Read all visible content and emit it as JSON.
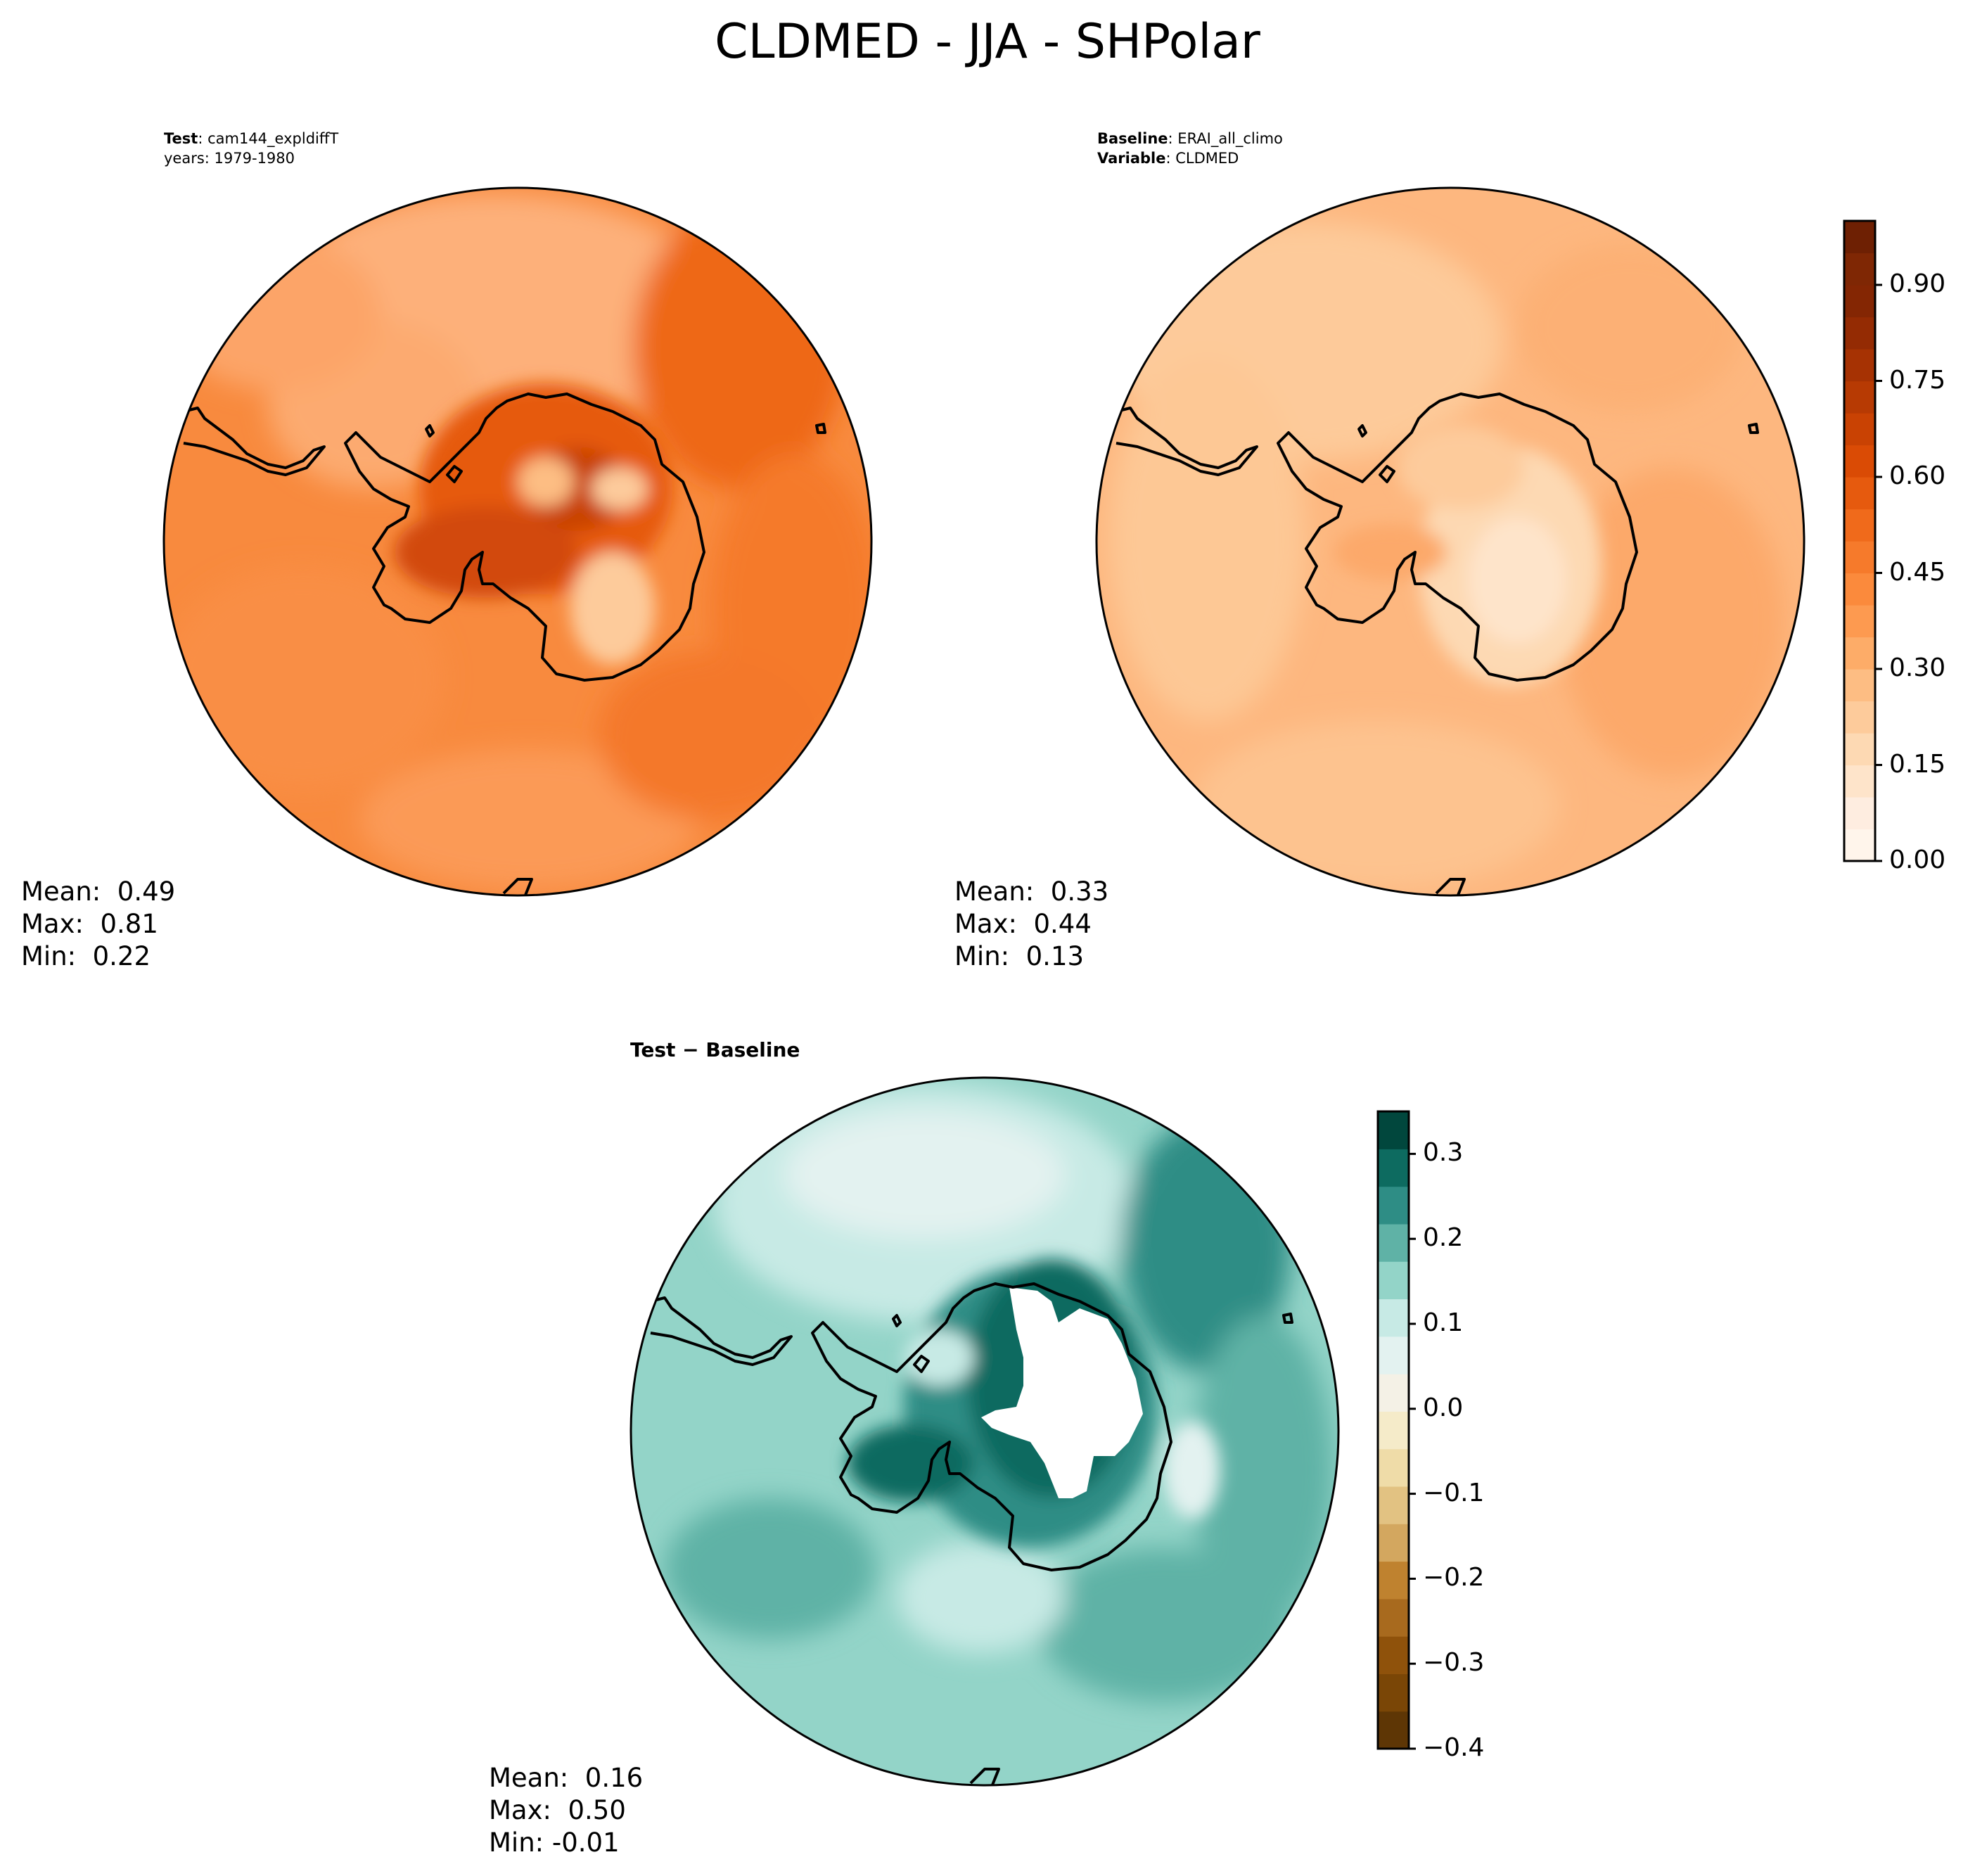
{
  "figure_title": "CLDMED - JJA - SHPolar",
  "panels": [
    {
      "id": "test",
      "header_line1_label": "Test",
      "header_line1_value": "cam144_expldiffT",
      "header_line2": "years: 1979-1980",
      "stats": {
        "mean": "Mean:  0.49",
        "max": "Max:  0.81",
        "min": "Min:  0.22"
      }
    },
    {
      "id": "baseline",
      "header_line1_label": "Baseline",
      "header_line1_value": "ERAI_all_climo",
      "header_line2_label": "Variable",
      "header_line2_value": "CLDMED",
      "stats": {
        "mean": "Mean:  0.33",
        "max": "Max:  0.44",
        "min": "Min:  0.13"
      }
    },
    {
      "id": "difference",
      "header": "Test − Baseline",
      "stats": {
        "mean": "Mean:  0.16",
        "max": "Max:  0.50",
        "min": "Min: -0.01"
      }
    }
  ],
  "colorbars": {
    "main": {
      "range": [
        0.0,
        1.0
      ],
      "levels": 20,
      "ticks": [
        "0.00",
        "0.15",
        "0.30",
        "0.45",
        "0.60",
        "0.75",
        "0.90"
      ],
      "colors": [
        "#fff5eb",
        "#feede0",
        "#fee4ca",
        "#fdd9b3",
        "#fdcb9b",
        "#fdbd83",
        "#fdac68",
        "#fd9a50",
        "#fb8a3c",
        "#f67a2b",
        "#f06a1b",
        "#e65a0e",
        "#da4b05",
        "#c94203",
        "#b73a03",
        "#a63203",
        "#942b03",
        "#842603",
        "#7f2704",
        "#6e2003"
      ]
    },
    "diff": {
      "range": [
        -0.4,
        0.35
      ],
      "ticks": [
        "0.3",
        "0.2",
        "0.1",
        "0.0",
        "−0.1",
        "−0.2",
        "−0.3",
        "−0.4"
      ],
      "colors": [
        "#5e3605",
        "#7a4606",
        "#8f520b",
        "#a86a1e",
        "#bf822f",
        "#d3a75f",
        "#e2c282",
        "#efdca8",
        "#f5ebc9",
        "#f4f1e6",
        "#e3f2f0",
        "#c7eae5",
        "#93d4c8",
        "#5fb2a6",
        "#2e8d85",
        "#0d6b60",
        "#01473d"
      ]
    }
  },
  "chart_data": [
    {
      "type": "heatmap",
      "title": "CLDMED - JJA - SHPolar",
      "panel": "Test",
      "case": "cam144_expldiffT",
      "years": "1979-1980",
      "projection": "south polar stereographic",
      "mean": 0.49,
      "max": 0.81,
      "min": 0.22,
      "colorbar_range": [
        0.0,
        1.0
      ],
      "colorbar_ticks": [
        0.0,
        0.15,
        0.3,
        0.45,
        0.6,
        0.75,
        0.9
      ]
    },
    {
      "type": "heatmap",
      "panel": "Baseline",
      "case": "ERAI_all_climo",
      "variable": "CLDMED",
      "projection": "south polar stereographic",
      "mean": 0.33,
      "max": 0.44,
      "min": 0.13,
      "colorbar_range": [
        0.0,
        1.0
      ],
      "colorbar_ticks": [
        0.0,
        0.15,
        0.3,
        0.45,
        0.6,
        0.75,
        0.9
      ]
    },
    {
      "type": "heatmap",
      "panel": "Test − Baseline",
      "projection": "south polar stereographic",
      "mean": 0.16,
      "max": 0.5,
      "min": -0.01,
      "colorbar_range": [
        -0.4,
        0.35
      ],
      "colorbar_ticks": [
        -0.4,
        -0.3,
        -0.2,
        -0.1,
        0.0,
        0.1,
        0.2,
        0.3
      ]
    }
  ]
}
